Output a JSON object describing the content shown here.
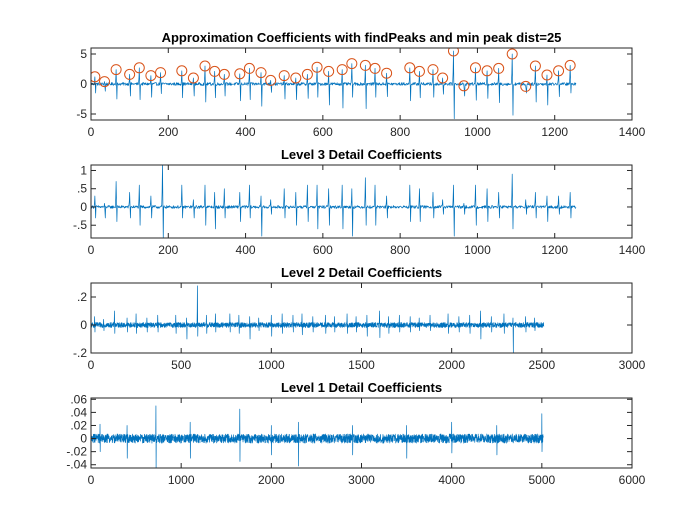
{
  "chart_data": [
    {
      "type": "line",
      "title": "Approximation Coefficients with findPeaks and min peak dist=25",
      "xlim": [
        0,
        1400
      ],
      "ylim": [
        -6,
        6
      ],
      "xticks": [
        0,
        200,
        400,
        600,
        800,
        1000,
        1200,
        1400
      ],
      "yticks": [
        -5,
        0,
        5
      ],
      "n_samples": 1256,
      "series": [
        {
          "style": "signal",
          "baseline": 0,
          "noise": 0.25,
          "events": [
            {
              "x": 10,
              "up": 1.2,
              "down": -1.5
            },
            {
              "x": 35,
              "up": 0.4,
              "down": -1.2
            },
            {
              "x": 65,
              "up": 2.4,
              "down": -2.5
            },
            {
              "x": 100,
              "up": 1.6,
              "down": -2.0
            },
            {
              "x": 125,
              "up": 2.7,
              "down": -2.6
            },
            {
              "x": 155,
              "up": 1.4,
              "down": -2.2
            },
            {
              "x": 180,
              "up": 1.9,
              "down": -1.6
            },
            {
              "x": 235,
              "up": 2.2,
              "down": -2.3
            },
            {
              "x": 265,
              "up": 1.0,
              "down": -2.0
            },
            {
              "x": 295,
              "up": 3.0,
              "down": -3.0
            },
            {
              "x": 320,
              "up": 2.1,
              "down": -2.3
            },
            {
              "x": 345,
              "up": 1.6,
              "down": -2.0
            },
            {
              "x": 385,
              "up": 1.7,
              "down": -2.8
            },
            {
              "x": 410,
              "up": 2.6,
              "down": -2.6
            },
            {
              "x": 440,
              "up": 1.9,
              "down": -3.7
            },
            {
              "x": 465,
              "up": 0.6,
              "down": -1.4
            },
            {
              "x": 500,
              "up": 1.4,
              "down": -2.5
            },
            {
              "x": 530,
              "up": 1.0,
              "down": -2.6
            },
            {
              "x": 560,
              "up": 1.6,
              "down": -2.4
            },
            {
              "x": 585,
              "up": 2.8,
              "down": -2.2
            },
            {
              "x": 615,
              "up": 2.1,
              "down": -3.5
            },
            {
              "x": 650,
              "up": 2.4,
              "down": -4.0
            },
            {
              "x": 675,
              "up": 3.4,
              "down": -2.2
            },
            {
              "x": 710,
              "up": 3.1,
              "down": -4.1
            },
            {
              "x": 735,
              "up": 2.6,
              "down": -2.2
            },
            {
              "x": 765,
              "up": 1.8,
              "down": -2.1
            },
            {
              "x": 825,
              "up": 2.7,
              "down": -2.8
            },
            {
              "x": 850,
              "up": 2.1,
              "down": -2.3
            },
            {
              "x": 885,
              "up": 2.4,
              "down": -2.2
            },
            {
              "x": 910,
              "up": 1.0,
              "down": -1.7
            },
            {
              "x": 938,
              "up": 5.5,
              "down": -5.8
            },
            {
              "x": 965,
              "up": -0.3,
              "down": -2.0
            },
            {
              "x": 995,
              "up": 2.7,
              "down": -2.7
            },
            {
              "x": 1025,
              "up": 2.2,
              "down": -2.4
            },
            {
              "x": 1055,
              "up": 2.6,
              "down": -3.1
            },
            {
              "x": 1090,
              "up": 5.0,
              "down": -5.2
            },
            {
              "x": 1125,
              "up": -0.4,
              "down": -1.5
            },
            {
              "x": 1150,
              "up": 3.0,
              "down": -3.0
            },
            {
              "x": 1180,
              "up": 1.5,
              "down": -3.5
            },
            {
              "x": 1210,
              "up": 2.2,
              "down": -2.1
            },
            {
              "x": 1240,
              "up": 3.1,
              "down": -1.5
            }
          ]
        },
        {
          "style": "peaks",
          "marker": "o",
          "x": [
            10,
            35,
            65,
            100,
            125,
            155,
            180,
            235,
            265,
            295,
            320,
            345,
            385,
            410,
            440,
            465,
            500,
            530,
            560,
            585,
            615,
            650,
            675,
            710,
            735,
            765,
            825,
            850,
            885,
            910,
            938,
            965,
            995,
            1025,
            1055,
            1090,
            1125,
            1150,
            1180,
            1210,
            1240
          ],
          "y": [
            1.2,
            0.4,
            2.4,
            1.6,
            2.7,
            1.4,
            1.9,
            2.2,
            1.0,
            3.0,
            2.1,
            1.6,
            1.7,
            2.6,
            1.9,
            0.6,
            1.4,
            1.0,
            1.6,
            2.8,
            2.1,
            2.4,
            3.4,
            3.1,
            2.6,
            1.8,
            2.7,
            2.1,
            2.4,
            1.0,
            5.5,
            -0.3,
            2.7,
            2.2,
            2.6,
            5.0,
            -0.4,
            3.0,
            1.5,
            2.2,
            3.1
          ]
        }
      ]
    },
    {
      "type": "line",
      "title": "Level 3 Detail Coefficients",
      "xlim": [
        0,
        1400
      ],
      "ylim": [
        -0.85,
        1.15
      ],
      "xticks": [
        0,
        200,
        400,
        600,
        800,
        1000,
        1200,
        1400
      ],
      "yticks": [
        -0.5,
        0,
        0.5,
        1
      ],
      "n_samples": 1256,
      "series": [
        {
          "style": "signal",
          "baseline": 0,
          "noise": 0.04,
          "events": [
            {
              "x": 10,
              "up": 0.3,
              "down": -0.3
            },
            {
              "x": 35,
              "up": 0.1,
              "down": -0.3
            },
            {
              "x": 65,
              "up": 0.7,
              "down": -0.4
            },
            {
              "x": 100,
              "up": 0.4,
              "down": -0.3
            },
            {
              "x": 125,
              "up": 0.6,
              "down": -0.5
            },
            {
              "x": 155,
              "up": 0.3,
              "down": -0.3
            },
            {
              "x": 185,
              "up": 1.2,
              "down": -0.9
            },
            {
              "x": 235,
              "up": 0.6,
              "down": -0.3
            },
            {
              "x": 265,
              "up": 0.2,
              "down": -0.3
            },
            {
              "x": 295,
              "up": 0.6,
              "down": -0.5
            },
            {
              "x": 320,
              "up": 0.4,
              "down": -0.6
            },
            {
              "x": 345,
              "up": 0.5,
              "down": -0.3
            },
            {
              "x": 385,
              "up": 0.4,
              "down": -0.4
            },
            {
              "x": 410,
              "up": 0.6,
              "down": -0.3
            },
            {
              "x": 440,
              "up": 0.3,
              "down": -0.8
            },
            {
              "x": 465,
              "up": 0.2,
              "down": -0.2
            },
            {
              "x": 500,
              "up": 0.5,
              "down": -0.3
            },
            {
              "x": 530,
              "up": 0.4,
              "down": -0.5
            },
            {
              "x": 560,
              "up": 0.6,
              "down": -0.4
            },
            {
              "x": 585,
              "up": 0.6,
              "down": -0.6
            },
            {
              "x": 615,
              "up": 0.5,
              "down": -0.5
            },
            {
              "x": 650,
              "up": 0.6,
              "down": -0.6
            },
            {
              "x": 675,
              "up": 0.5,
              "down": -0.8
            },
            {
              "x": 710,
              "up": 0.8,
              "down": -0.5
            },
            {
              "x": 735,
              "up": 0.6,
              "down": -0.5
            },
            {
              "x": 765,
              "up": 0.3,
              "down": -0.3
            },
            {
              "x": 825,
              "up": 0.6,
              "down": -0.4
            },
            {
              "x": 850,
              "up": 0.5,
              "down": -0.4
            },
            {
              "x": 885,
              "up": 0.4,
              "down": -0.3
            },
            {
              "x": 910,
              "up": 0.2,
              "down": -0.2
            },
            {
              "x": 938,
              "up": 0.6,
              "down": -0.8
            },
            {
              "x": 965,
              "up": 0.1,
              "down": -0.2
            },
            {
              "x": 995,
              "up": 0.6,
              "down": -0.5
            },
            {
              "x": 1025,
              "up": 0.5,
              "down": -0.4
            },
            {
              "x": 1055,
              "up": 0.4,
              "down": -0.3
            },
            {
              "x": 1090,
              "up": 0.9,
              "down": -0.6
            },
            {
              "x": 1125,
              "up": 0.2,
              "down": -0.2
            },
            {
              "x": 1150,
              "up": 0.4,
              "down": -0.3
            },
            {
              "x": 1180,
              "up": 0.3,
              "down": -0.4
            },
            {
              "x": 1210,
              "up": 0.3,
              "down": -0.2
            },
            {
              "x": 1240,
              "up": 0.4,
              "down": -0.3
            }
          ]
        }
      ]
    },
    {
      "type": "line",
      "title": "Level 2 Detail Coefficients",
      "xlim": [
        0,
        3000
      ],
      "ylim": [
        -0.2,
        0.3
      ],
      "xticks": [
        0,
        500,
        1000,
        1500,
        2000,
        2500,
        3000
      ],
      "yticks": [
        -0.2,
        0,
        0.2
      ],
      "n_samples": 2512,
      "series": [
        {
          "style": "signal",
          "baseline": 0,
          "noise": 0.018,
          "events": [
            {
              "x": 20,
              "up": 0.06,
              "down": -0.05
            },
            {
              "x": 70,
              "up": 0.04,
              "down": -0.04
            },
            {
              "x": 130,
              "up": 0.1,
              "down": -0.06
            },
            {
              "x": 200,
              "up": 0.05,
              "down": -0.05
            },
            {
              "x": 250,
              "up": 0.08,
              "down": -0.06
            },
            {
              "x": 310,
              "up": 0.05,
              "down": -0.05
            },
            {
              "x": 370,
              "up": 0.07,
              "down": -0.05
            },
            {
              "x": 470,
              "up": 0.07,
              "down": -0.06
            },
            {
              "x": 530,
              "up": 0.05,
              "down": -0.1
            },
            {
              "x": 590,
              "up": 0.28,
              "down": -0.08
            },
            {
              "x": 640,
              "up": 0.07,
              "down": -0.06
            },
            {
              "x": 690,
              "up": 0.08,
              "down": -0.05
            },
            {
              "x": 770,
              "up": 0.08,
              "down": -0.05
            },
            {
              "x": 820,
              "up": 0.07,
              "down": -0.06
            },
            {
              "x": 880,
              "up": 0.06,
              "down": -0.1
            },
            {
              "x": 930,
              "up": 0.05,
              "down": -0.04
            },
            {
              "x": 1000,
              "up": 0.07,
              "down": -0.08
            },
            {
              "x": 1060,
              "up": 0.08,
              "down": -0.06
            },
            {
              "x": 1120,
              "up": 0.07,
              "down": -0.05
            },
            {
              "x": 1170,
              "up": 0.08,
              "down": -0.07
            },
            {
              "x": 1230,
              "up": 0.06,
              "down": -0.05
            },
            {
              "x": 1300,
              "up": 0.07,
              "down": -0.06
            },
            {
              "x": 1350,
              "up": 0.06,
              "down": -0.05
            },
            {
              "x": 1420,
              "up": 0.08,
              "down": -0.06
            },
            {
              "x": 1470,
              "up": 0.06,
              "down": -0.05
            },
            {
              "x": 1530,
              "up": 0.07,
              "down": -0.08
            },
            {
              "x": 1600,
              "up": 0.1,
              "down": -0.09
            },
            {
              "x": 1650,
              "up": 0.06,
              "down": -0.06
            },
            {
              "x": 1710,
              "up": 0.07,
              "down": -0.05
            },
            {
              "x": 1770,
              "up": 0.06,
              "down": -0.05
            },
            {
              "x": 1820,
              "up": 0.05,
              "down": -0.04
            },
            {
              "x": 1880,
              "up": 0.07,
              "down": -0.04
            },
            {
              "x": 1980,
              "up": 0.08,
              "down": -0.06
            },
            {
              "x": 2040,
              "up": 0.06,
              "down": -0.05
            },
            {
              "x": 2100,
              "up": 0.07,
              "down": -0.06
            },
            {
              "x": 2160,
              "up": 0.1,
              "down": -0.1
            },
            {
              "x": 2220,
              "up": 0.06,
              "down": -0.05
            },
            {
              "x": 2290,
              "up": 0.08,
              "down": -0.06
            },
            {
              "x": 2340,
              "up": 0.05,
              "down": -0.2
            },
            {
              "x": 2410,
              "up": 0.06,
              "down": -0.05
            },
            {
              "x": 2460,
              "up": 0.05,
              "down": -0.04
            }
          ]
        }
      ]
    },
    {
      "type": "line",
      "title": "Level 1 Detail Coefficients",
      "xlim": [
        0,
        6000
      ],
      "ylim": [
        -0.045,
        0.062
      ],
      "xticks": [
        0,
        1000,
        2000,
        3000,
        4000,
        5000,
        6000
      ],
      "yticks": [
        -0.04,
        -0.02,
        0,
        0.02,
        0.04,
        0.06
      ],
      "n_samples": 5018,
      "series": [
        {
          "style": "signal",
          "baseline": 0,
          "noise": 0.007,
          "events": [
            {
              "x": 100,
              "up": 0.022,
              "down": -0.02
            },
            {
              "x": 400,
              "up": 0.02,
              "down": -0.03
            },
            {
              "x": 720,
              "up": 0.05,
              "down": -0.045
            },
            {
              "x": 1100,
              "up": 0.025,
              "down": -0.03
            },
            {
              "x": 1650,
              "up": 0.045,
              "down": -0.035
            },
            {
              "x": 2000,
              "up": 0.02,
              "down": -0.025
            },
            {
              "x": 2300,
              "up": 0.025,
              "down": -0.042
            },
            {
              "x": 2900,
              "up": 0.02,
              "down": -0.025
            },
            {
              "x": 3500,
              "up": 0.02,
              "down": -0.03
            },
            {
              "x": 4000,
              "up": 0.025,
              "down": -0.022
            },
            {
              "x": 4500,
              "up": 0.02,
              "down": -0.025
            },
            {
              "x": 5000,
              "up": 0.038,
              "down": -0.02
            }
          ]
        }
      ]
    }
  ]
}
